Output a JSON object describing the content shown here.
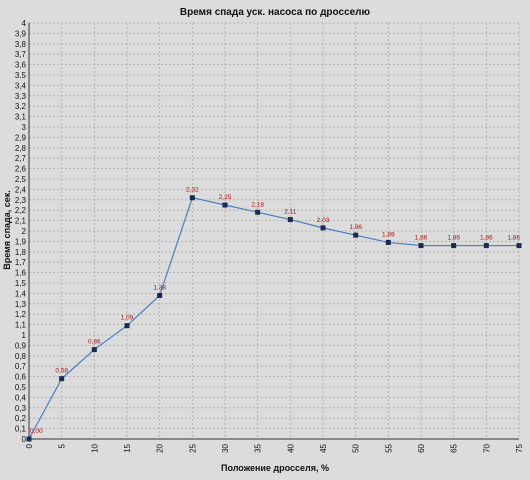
{
  "chart_data": {
    "type": "line",
    "title": "Время спада уск. насоса по дросселю",
    "xlabel": "Положение дросселя, %",
    "ylabel": "Время спада, сек.",
    "x": [
      0,
      5,
      10,
      15,
      20,
      25,
      30,
      35,
      40,
      45,
      50,
      55,
      60,
      65,
      70,
      75
    ],
    "series": [
      {
        "values": [
          0,
          0.58,
          0.86,
          1.09,
          1.38,
          2.32,
          2.25,
          2.18,
          2.11,
          2.03,
          1.96,
          1.89,
          1.86,
          1.86,
          1.86,
          1.86
        ],
        "labels": [
          "0,00",
          "0,58",
          "0,86",
          "1,09",
          "1,38",
          "2,32",
          "2,25",
          "2,18",
          "2,11",
          "2,03",
          "1,96",
          "1,89",
          "1,86",
          "1,86",
          "1,86",
          "1,86"
        ],
        "color": "#4a7fc0",
        "marker_color": "#1a2a50"
      }
    ],
    "x_ticks": [
      "0",
      "5",
      "10",
      "15",
      "20",
      "25",
      "30",
      "35",
      "40",
      "45",
      "50",
      "55",
      "60",
      "65",
      "70",
      "75"
    ],
    "y_ticks": [
      "0",
      "0,1",
      "0,2",
      "0,3",
      "0,4",
      "0,5",
      "0,6",
      "0,7",
      "0,8",
      "0,9",
      "1",
      "1,1",
      "1,2",
      "1,3",
      "1,4",
      "1,5",
      "1,6",
      "1,7",
      "1,8",
      "1,9",
      "2",
      "2,1",
      "2,2",
      "2,3",
      "2,4",
      "2,5",
      "2,6",
      "2,7",
      "2,8",
      "2,9",
      "3",
      "3,1",
      "3,2",
      "3,3",
      "3,4",
      "3,5",
      "3,6",
      "3,7",
      "3,8",
      "3,9",
      "4"
    ],
    "xlim": [
      0,
      75
    ],
    "ylim": [
      0,
      4
    ],
    "grid": true,
    "background": "#dcdcdc",
    "grid_color": "#a8a8a8"
  }
}
